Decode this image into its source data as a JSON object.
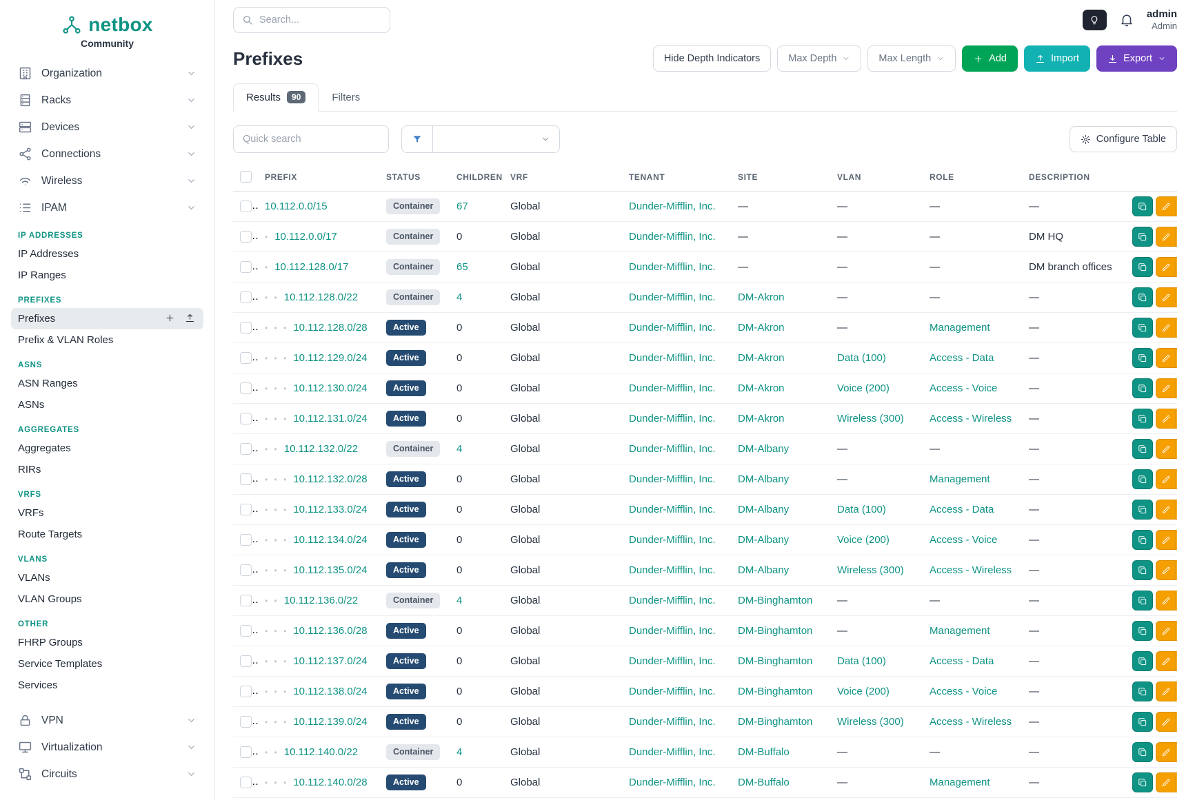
{
  "colors": {
    "teal": "#0e9384",
    "link": "#0e9384",
    "green": "#00a457",
    "cyan": "#12b2b3",
    "purple": "#6f42c1",
    "orange": "#f59f00",
    "filter": "#3b7dc8",
    "badge_active_bg": "#264b72",
    "badge_container_bg": "#e4e7ec",
    "dark_toggle_bg": "#1f2430"
  },
  "brand": {
    "name": "netbox",
    "subtitle": "Community"
  },
  "topbar": {
    "search_placeholder": "Search...",
    "user_name": "admin",
    "user_role": "Admin"
  },
  "sidebar": {
    "top_items": [
      {
        "label": "Organization",
        "icon": "organization-icon"
      },
      {
        "label": "Racks",
        "icon": "racks-icon"
      },
      {
        "label": "Devices",
        "icon": "devices-icon"
      },
      {
        "label": "Connections",
        "icon": "connections-icon"
      },
      {
        "label": "Wireless",
        "icon": "wireless-icon"
      },
      {
        "label": "IPAM",
        "icon": "ipam-icon"
      }
    ],
    "sections": [
      {
        "header": "IP ADDRESSES",
        "links": [
          {
            "label": "IP Addresses"
          },
          {
            "label": "IP Ranges"
          }
        ]
      },
      {
        "header": "PREFIXES",
        "links": [
          {
            "label": "Prefixes",
            "active": true,
            "actions": [
              "plus-icon",
              "import-icon"
            ]
          },
          {
            "label": "Prefix & VLAN Roles"
          }
        ]
      },
      {
        "header": "ASNS",
        "links": [
          {
            "label": "ASN Ranges"
          },
          {
            "label": "ASNs"
          }
        ]
      },
      {
        "header": "AGGREGATES",
        "links": [
          {
            "label": "Aggregates"
          },
          {
            "label": "RIRs"
          }
        ]
      },
      {
        "header": "VRFS",
        "links": [
          {
            "label": "VRFs"
          },
          {
            "label": "Route Targets"
          }
        ]
      },
      {
        "header": "VLANS",
        "links": [
          {
            "label": "VLANs"
          },
          {
            "label": "VLAN Groups"
          }
        ]
      },
      {
        "header": "OTHER",
        "links": [
          {
            "label": "FHRP Groups"
          },
          {
            "label": "Service Templates"
          },
          {
            "label": "Services"
          }
        ]
      }
    ],
    "bottom_items": [
      {
        "label": "VPN",
        "icon": "vpn-icon"
      },
      {
        "label": "Virtualization",
        "icon": "virtualization-icon"
      },
      {
        "label": "Circuits",
        "icon": "circuits-icon"
      }
    ]
  },
  "page": {
    "title": "Prefixes",
    "hide_depth_label": "Hide Depth Indicators",
    "max_depth_label": "Max Depth",
    "max_length_label": "Max Length",
    "add_label": "Add",
    "import_label": "Import",
    "export_label": "Export",
    "tabs": [
      {
        "label": "Results",
        "badge": "90",
        "active": true
      },
      {
        "label": "Filters",
        "active": false
      }
    ],
    "quick_search_placeholder": "Quick search",
    "configure_table_label": "Configure Table"
  },
  "table": {
    "columns": [
      "PREFIX",
      "STATUS",
      "CHILDREN",
      "VRF",
      "TENANT",
      "SITE",
      "VLAN",
      "ROLE",
      "DESCRIPTION"
    ],
    "rows": [
      {
        "depth": 0,
        "prefix": "10.112.0.0/15",
        "status": "Container",
        "children": "67",
        "vrf": "Global",
        "tenant": "Dunder-Mifflin, Inc.",
        "site": "—",
        "vlan": "—",
        "role": "—",
        "description": "—"
      },
      {
        "depth": 1,
        "prefix": "10.112.0.0/17",
        "status": "Container",
        "children": "0",
        "vrf": "Global",
        "tenant": "Dunder-Mifflin, Inc.",
        "site": "—",
        "vlan": "—",
        "role": "—",
        "description": "DM HQ"
      },
      {
        "depth": 1,
        "prefix": "10.112.128.0/17",
        "status": "Container",
        "children": "65",
        "vrf": "Global",
        "tenant": "Dunder-Mifflin, Inc.",
        "site": "—",
        "vlan": "—",
        "role": "—",
        "description": "DM branch offices"
      },
      {
        "depth": 2,
        "prefix": "10.112.128.0/22",
        "status": "Container",
        "children": "4",
        "vrf": "Global",
        "tenant": "Dunder-Mifflin, Inc.",
        "site": "DM-Akron",
        "vlan": "—",
        "role": "—",
        "description": "—"
      },
      {
        "depth": 3,
        "prefix": "10.112.128.0/28",
        "status": "Active",
        "children": "0",
        "vrf": "Global",
        "tenant": "Dunder-Mifflin, Inc.",
        "site": "DM-Akron",
        "vlan": "—",
        "role": "Management",
        "description": "—"
      },
      {
        "depth": 3,
        "prefix": "10.112.129.0/24",
        "status": "Active",
        "children": "0",
        "vrf": "Global",
        "tenant": "Dunder-Mifflin, Inc.",
        "site": "DM-Akron",
        "vlan": "Data (100)",
        "role": "Access - Data",
        "description": "—"
      },
      {
        "depth": 3,
        "prefix": "10.112.130.0/24",
        "status": "Active",
        "children": "0",
        "vrf": "Global",
        "tenant": "Dunder-Mifflin, Inc.",
        "site": "DM-Akron",
        "vlan": "Voice (200)",
        "role": "Access - Voice",
        "description": "—"
      },
      {
        "depth": 3,
        "prefix": "10.112.131.0/24",
        "status": "Active",
        "children": "0",
        "vrf": "Global",
        "tenant": "Dunder-Mifflin, Inc.",
        "site": "DM-Akron",
        "vlan": "Wireless (300)",
        "role": "Access - Wireless",
        "description": "—"
      },
      {
        "depth": 2,
        "prefix": "10.112.132.0/22",
        "status": "Container",
        "children": "4",
        "vrf": "Global",
        "tenant": "Dunder-Mifflin, Inc.",
        "site": "DM-Albany",
        "vlan": "—",
        "role": "—",
        "description": "—"
      },
      {
        "depth": 3,
        "prefix": "10.112.132.0/28",
        "status": "Active",
        "children": "0",
        "vrf": "Global",
        "tenant": "Dunder-Mifflin, Inc.",
        "site": "DM-Albany",
        "vlan": "—",
        "role": "Management",
        "description": "—"
      },
      {
        "depth": 3,
        "prefix": "10.112.133.0/24",
        "status": "Active",
        "children": "0",
        "vrf": "Global",
        "tenant": "Dunder-Mifflin, Inc.",
        "site": "DM-Albany",
        "vlan": "Data (100)",
        "role": "Access - Data",
        "description": "—"
      },
      {
        "depth": 3,
        "prefix": "10.112.134.0/24",
        "status": "Active",
        "children": "0",
        "vrf": "Global",
        "tenant": "Dunder-Mifflin, Inc.",
        "site": "DM-Albany",
        "vlan": "Voice (200)",
        "role": "Access - Voice",
        "description": "—"
      },
      {
        "depth": 3,
        "prefix": "10.112.135.0/24",
        "status": "Active",
        "children": "0",
        "vrf": "Global",
        "tenant": "Dunder-Mifflin, Inc.",
        "site": "DM-Albany",
        "vlan": "Wireless (300)",
        "role": "Access - Wireless",
        "description": "—"
      },
      {
        "depth": 2,
        "prefix": "10.112.136.0/22",
        "status": "Container",
        "children": "4",
        "vrf": "Global",
        "tenant": "Dunder-Mifflin, Inc.",
        "site": "DM-Binghamton",
        "vlan": "—",
        "role": "—",
        "description": "—"
      },
      {
        "depth": 3,
        "prefix": "10.112.136.0/28",
        "status": "Active",
        "children": "0",
        "vrf": "Global",
        "tenant": "Dunder-Mifflin, Inc.",
        "site": "DM-Binghamton",
        "vlan": "—",
        "role": "Management",
        "description": "—"
      },
      {
        "depth": 3,
        "prefix": "10.112.137.0/24",
        "status": "Active",
        "children": "0",
        "vrf": "Global",
        "tenant": "Dunder-Mifflin, Inc.",
        "site": "DM-Binghamton",
        "vlan": "Data (100)",
        "role": "Access - Data",
        "description": "—"
      },
      {
        "depth": 3,
        "prefix": "10.112.138.0/24",
        "status": "Active",
        "children": "0",
        "vrf": "Global",
        "tenant": "Dunder-Mifflin, Inc.",
        "site": "DM-Binghamton",
        "vlan": "Voice (200)",
        "role": "Access - Voice",
        "description": "—"
      },
      {
        "depth": 3,
        "prefix": "10.112.139.0/24",
        "status": "Active",
        "children": "0",
        "vrf": "Global",
        "tenant": "Dunder-Mifflin, Inc.",
        "site": "DM-Binghamton",
        "vlan": "Wireless (300)",
        "role": "Access - Wireless",
        "description": "—"
      },
      {
        "depth": 2,
        "prefix": "10.112.140.0/22",
        "status": "Container",
        "children": "4",
        "vrf": "Global",
        "tenant": "Dunder-Mifflin, Inc.",
        "site": "DM-Buffalo",
        "vlan": "—",
        "role": "—",
        "description": "—"
      },
      {
        "depth": 3,
        "prefix": "10.112.140.0/28",
        "status": "Active",
        "children": "0",
        "vrf": "Global",
        "tenant": "Dunder-Mifflin, Inc.",
        "site": "DM-Buffalo",
        "vlan": "—",
        "role": "Management",
        "description": "—"
      }
    ]
  }
}
